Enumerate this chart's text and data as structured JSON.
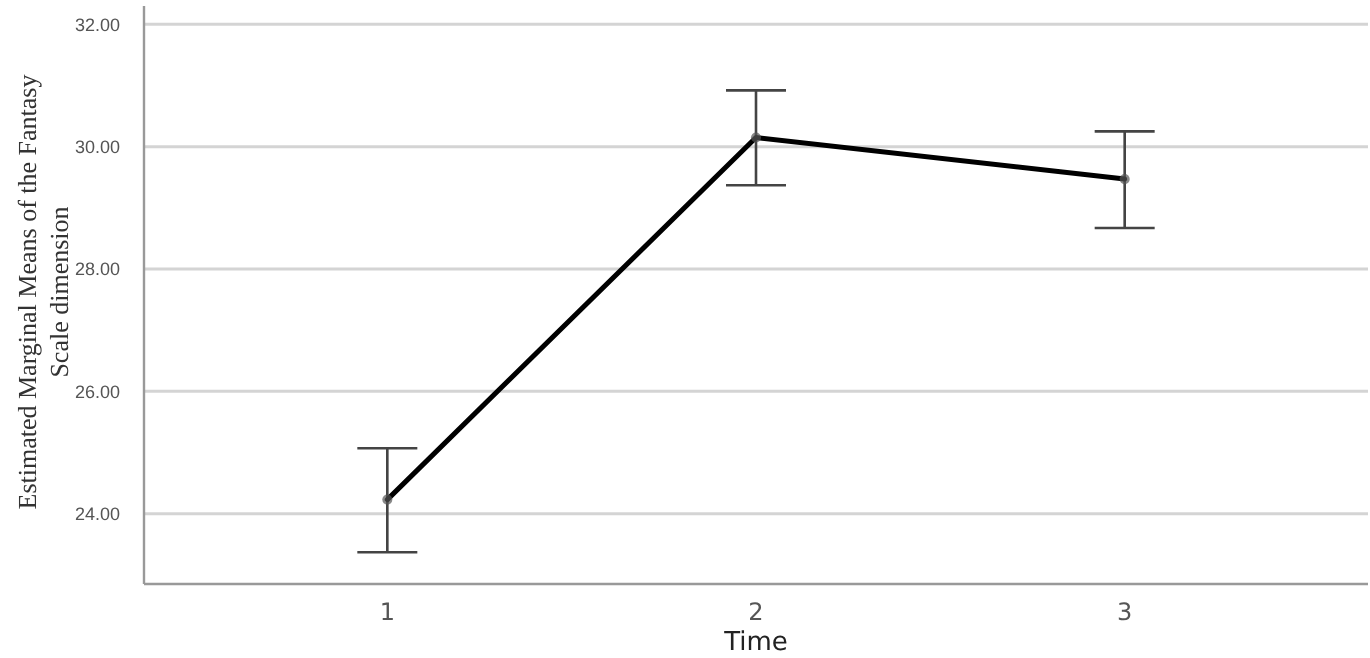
{
  "chart_data": {
    "type": "line",
    "xlabel": "Time",
    "ylabel": "Estimated Marginal Means of the Fantasy Scale dimension",
    "categories": [
      "1",
      "2",
      "3"
    ],
    "series": [
      {
        "color": "#000000",
        "values": [
          24.23,
          30.15,
          29.47
        ],
        "errors": [
          [
            23.37,
            25.07
          ],
          [
            29.37,
            30.92
          ],
          [
            28.67,
            30.25
          ]
        ]
      }
    ],
    "ylim": [
      22.85,
      32.3
    ],
    "yticks": [
      {
        "value": 24,
        "label": "24.00"
      },
      {
        "value": 26,
        "label": "26.00"
      },
      {
        "value": 28,
        "label": "28.00"
      },
      {
        "value": 30,
        "label": "30.00"
      },
      {
        "value": 32,
        "label": "32.00"
      }
    ],
    "grid": "y",
    "marker": "circle",
    "line_style": "solid"
  }
}
